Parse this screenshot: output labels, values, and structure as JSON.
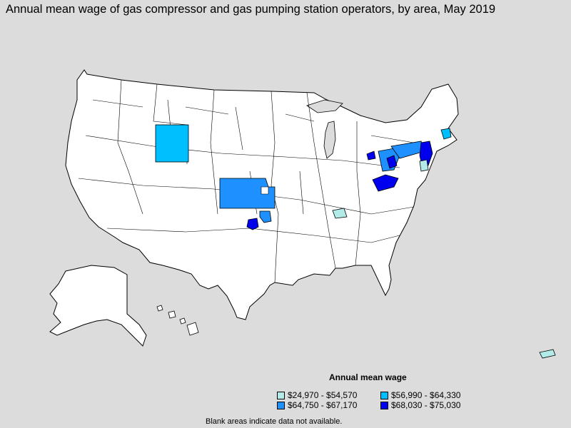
{
  "title": "Annual mean wage of gas compressor and gas pumping station operators, by area, May 2019",
  "legend": {
    "title": "Annual mean wage",
    "items": [
      {
        "label": "$24,970 - $54,570",
        "color": "#b2ebe7"
      },
      {
        "label": "$56,990 - $64,330",
        "color": "#00bfff"
      },
      {
        "label": "$64,750 - $67,170",
        "color": "#1e90ff"
      },
      {
        "label": "$68,030 - $75,030",
        "color": "#0000ee"
      }
    ]
  },
  "note": "Blank areas indicate data not available.",
  "colors": {
    "background": "#dcdcdc",
    "land": "#ffffff",
    "border": "#000000"
  }
}
